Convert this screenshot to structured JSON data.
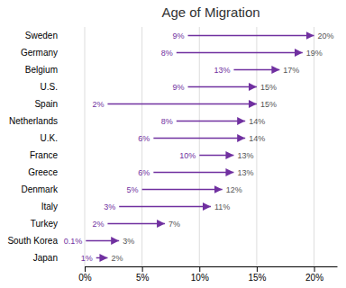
{
  "chart_data": {
    "type": "arrow",
    "title": "Age of Migration",
    "orientation": "horizontal",
    "categories": [
      "Sweden",
      "Germany",
      "Belgium",
      "U.S.",
      "Spain",
      "Netherlands",
      "U.K.",
      "France",
      "Greece",
      "Denmark",
      "Italy",
      "Turkey",
      "South Korea",
      "Japan"
    ],
    "start_values": [
      9,
      8,
      13,
      9,
      2,
      8,
      6,
      10,
      6,
      5,
      3,
      2,
      0.1,
      1
    ],
    "start_value_labels": [
      "9%",
      "8%",
      "13%",
      "9%",
      "2%",
      "8%",
      "6%",
      "10%",
      "6%",
      "5%",
      "3%",
      "2%",
      "0.1%",
      "1%"
    ],
    "values": [
      20,
      19,
      17,
      15,
      15,
      14,
      14,
      13,
      13,
      12,
      11,
      7,
      3,
      2
    ],
    "value_labels": [
      "20%",
      "19%",
      "17%",
      "15%",
      "15%",
      "14%",
      "14%",
      "13%",
      "13%",
      "12%",
      "11%",
      "7%",
      "3%",
      "2%"
    ],
    "color": "#7030A0",
    "data_labels": true,
    "grid": true,
    "xlim": [
      0,
      22
    ],
    "xticks": [
      {
        "value": 0,
        "label": "0%"
      },
      {
        "value": 5,
        "label": "5%"
      },
      {
        "value": 10,
        "label": "10%"
      },
      {
        "value": 15,
        "label": "15%"
      },
      {
        "value": 20,
        "label": "20%"
      }
    ]
  }
}
